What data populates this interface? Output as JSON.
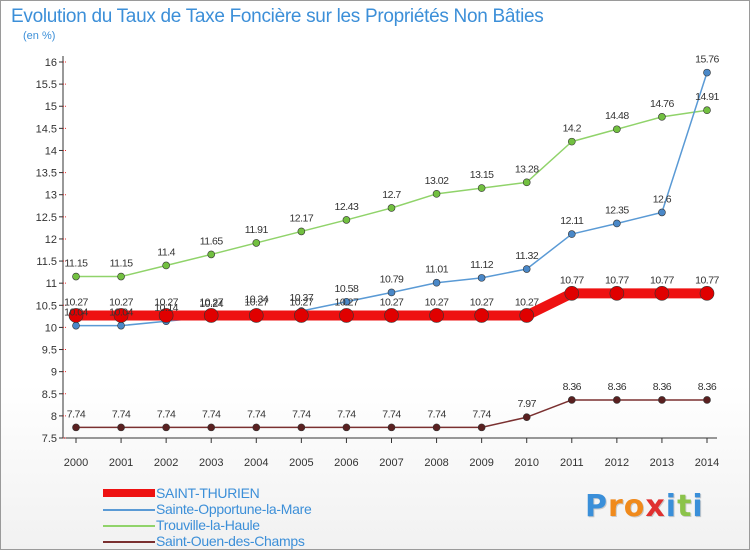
{
  "title": "Evolution du Taux de Taxe Foncière sur les Propriétés Non Bâties",
  "subtitle": "(en %)",
  "logo": {
    "text": "Proxiti",
    "letters": [
      "P",
      "r",
      "o",
      "x",
      "i",
      "t",
      "i"
    ],
    "colors": [
      "#3a8fd9",
      "#f08a1c",
      "#f08a1c",
      "#e03030",
      "#3a8fd9",
      "#8bc34a",
      "#3a8fd9"
    ]
  },
  "chart_data": {
    "type": "line",
    "title": "Evolution du Taux de Taxe Foncière sur les Propriétés Non Bâties",
    "ylabel": "(en %)",
    "x": [
      "2000",
      "2001",
      "2002",
      "2003",
      "2004",
      "2005",
      "2006",
      "2007",
      "2008",
      "2009",
      "2010",
      "2011",
      "2012",
      "2013",
      "2014"
    ],
    "ylim": [
      7.5,
      16
    ],
    "yticks": [
      "7.5",
      "8",
      "8.5",
      "9",
      "9.5",
      "10",
      "10.5",
      "11",
      "11.5",
      "12",
      "12.5",
      "13",
      "13.5",
      "14",
      "14.5",
      "15",
      "15.5",
      "16"
    ],
    "grid": false,
    "legend": "bottom-left",
    "series": [
      {
        "name": "SAINT-THURIEN",
        "color": "#ee1111",
        "values": [
          10.27,
          10.27,
          10.27,
          10.27,
          10.27,
          10.27,
          10.27,
          10.27,
          10.27,
          10.27,
          10.27,
          10.77,
          10.77,
          10.77,
          10.77
        ],
        "labels": [
          "10.27",
          "10.27",
          "10.27",
          "10.27",
          "10.27",
          "10.27",
          "10.27",
          "10.27",
          "10.27",
          "10.27",
          "10.27",
          "10.77",
          "10.77",
          "10.77",
          "10.77"
        ]
      },
      {
        "name": "Sainte-Opportune-la-Mare",
        "color": "#5a9ad5",
        "values": [
          10.04,
          10.04,
          10.14,
          10.24,
          10.34,
          10.37,
          10.58,
          10.79,
          11.01,
          11.12,
          11.32,
          12.11,
          12.35,
          12.6,
          15.76
        ],
        "labels": [
          "10.04",
          "10.04",
          "10.14",
          "10.24",
          "10.34",
          "10.37",
          "10.58",
          "10.79",
          "11.01",
          "11.12",
          "11.32",
          "12.11",
          "12.35",
          "12.6",
          "15.76"
        ]
      },
      {
        "name": "Trouville-la-Haule",
        "color": "#90d36a",
        "values": [
          11.15,
          11.15,
          11.4,
          11.65,
          11.91,
          12.17,
          12.43,
          12.7,
          13.02,
          13.15,
          13.28,
          14.2,
          14.48,
          14.76,
          14.91
        ],
        "labels": [
          "11.15",
          "11.15",
          "11.4",
          "11.65",
          "11.91",
          "12.17",
          "12.43",
          "12.7",
          "13.02",
          "13.15",
          "13.28",
          "14.2",
          "14.48",
          "14.76",
          "14.91"
        ]
      },
      {
        "name": "Saint-Ouen-des-Champs",
        "color": "#7a3030",
        "values": [
          7.74,
          7.74,
          7.74,
          7.74,
          7.74,
          7.74,
          7.74,
          7.74,
          7.74,
          7.74,
          7.97,
          8.36,
          8.36,
          8.36,
          8.36
        ],
        "labels": [
          "7.74",
          "7.74",
          "7.74",
          "7.74",
          "7.74",
          "7.74",
          "7.74",
          "7.74",
          "7.74",
          "7.74",
          "7.97",
          "8.36",
          "8.36",
          "8.36",
          "8.36"
        ]
      }
    ]
  }
}
